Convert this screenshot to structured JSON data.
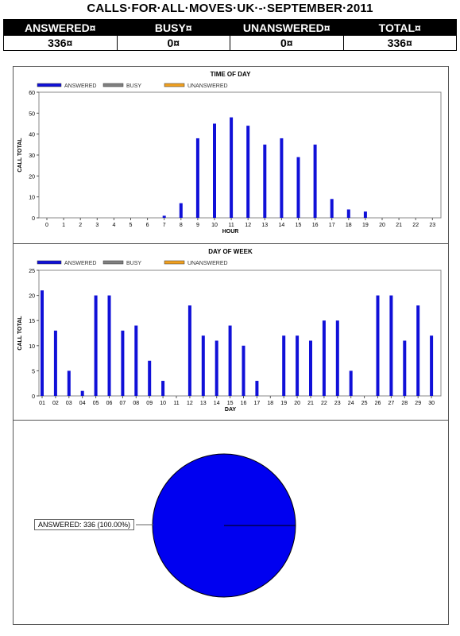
{
  "title": "CALLS·FOR·ALL·MOVES·UK·-·SEPTEMBER·2011",
  "summary": {
    "headers": [
      "ANSWERED¤",
      "BUSY¤",
      "UNANSWERED¤",
      "TOTAL¤"
    ],
    "values": [
      "336¤",
      "0¤",
      "0¤",
      "336¤"
    ]
  },
  "legend": [
    {
      "label": "ANSWERED",
      "color": "#1010d8"
    },
    {
      "label": "BUSY",
      "color": "#808080"
    },
    {
      "label": "UNANSWERED",
      "color": "#f0a020"
    }
  ],
  "pie_label": "ANSWERED: 336 (100.00%)",
  "chart_data": [
    {
      "type": "bar",
      "title": "TIME OF DAY",
      "xlabel": "HOUR",
      "ylabel": "CALL TOTAL",
      "ylim": [
        0,
        60
      ],
      "yticks": [
        0,
        10,
        20,
        30,
        40,
        50,
        60
      ],
      "categories": [
        "0",
        "1",
        "2",
        "3",
        "4",
        "5",
        "6",
        "7",
        "8",
        "9",
        "10",
        "11",
        "12",
        "13",
        "14",
        "15",
        "16",
        "17",
        "18",
        "19",
        "20",
        "21",
        "22",
        "23"
      ],
      "series": [
        {
          "name": "ANSWERED",
          "values": [
            0,
            0,
            0,
            0,
            0,
            0,
            0,
            1,
            7,
            38,
            45,
            48,
            44,
            35,
            38,
            29,
            35,
            9,
            4,
            3,
            0,
            0,
            0,
            0
          ]
        },
        {
          "name": "BUSY",
          "values": [
            0,
            0,
            0,
            0,
            0,
            0,
            0,
            0,
            0,
            0,
            0,
            0,
            0,
            0,
            0,
            0,
            0,
            0,
            0,
            0,
            0,
            0,
            0,
            0
          ]
        },
        {
          "name": "UNANSWERED",
          "values": [
            0,
            0,
            0,
            0,
            0,
            0,
            0,
            0,
            0,
            0,
            0,
            0,
            0,
            0,
            0,
            0,
            0,
            0,
            0,
            0,
            0,
            0,
            0,
            0
          ]
        }
      ],
      "grid": false,
      "legend_position": "top-left"
    },
    {
      "type": "bar",
      "title": "DAY OF WEEK",
      "xlabel": "DAY",
      "ylabel": "CALL TOTAL",
      "ylim": [
        0,
        25
      ],
      "yticks": [
        0,
        5,
        10,
        15,
        20,
        25
      ],
      "categories": [
        "01",
        "02",
        "03",
        "04",
        "05",
        "06",
        "07",
        "08",
        "09",
        "10",
        "11",
        "12",
        "13",
        "14",
        "15",
        "16",
        "17",
        "18",
        "19",
        "20",
        "21",
        "22",
        "23",
        "24",
        "25",
        "26",
        "27",
        "28",
        "29",
        "30"
      ],
      "series": [
        {
          "name": "ANSWERED",
          "values": [
            21,
            13,
            5,
            1,
            20,
            20,
            13,
            14,
            7,
            3,
            0,
            18,
            12,
            11,
            14,
            10,
            3,
            0,
            12,
            12,
            11,
            15,
            15,
            5,
            0,
            20,
            20,
            11,
            18,
            12
          ]
        },
        {
          "name": "BUSY",
          "values": [
            0,
            0,
            0,
            0,
            0,
            0,
            0,
            0,
            0,
            0,
            0,
            0,
            0,
            0,
            0,
            0,
            0,
            0,
            0,
            0,
            0,
            0,
            0,
            0,
            0,
            0,
            0,
            0,
            0,
            0
          ]
        },
        {
          "name": "UNANSWERED",
          "values": [
            0,
            0,
            0,
            0,
            0,
            0,
            0,
            0,
            0,
            0,
            0,
            0,
            0,
            0,
            0,
            0,
            0,
            0,
            0,
            0,
            0,
            0,
            0,
            0,
            0,
            0,
            0,
            0,
            0,
            0
          ]
        }
      ],
      "grid": false,
      "legend_position": "top-left"
    },
    {
      "type": "pie",
      "labels": [
        "ANSWERED"
      ],
      "values": [
        336
      ],
      "percentages": [
        100.0
      ],
      "colors": [
        "#0000f0"
      ]
    }
  ]
}
